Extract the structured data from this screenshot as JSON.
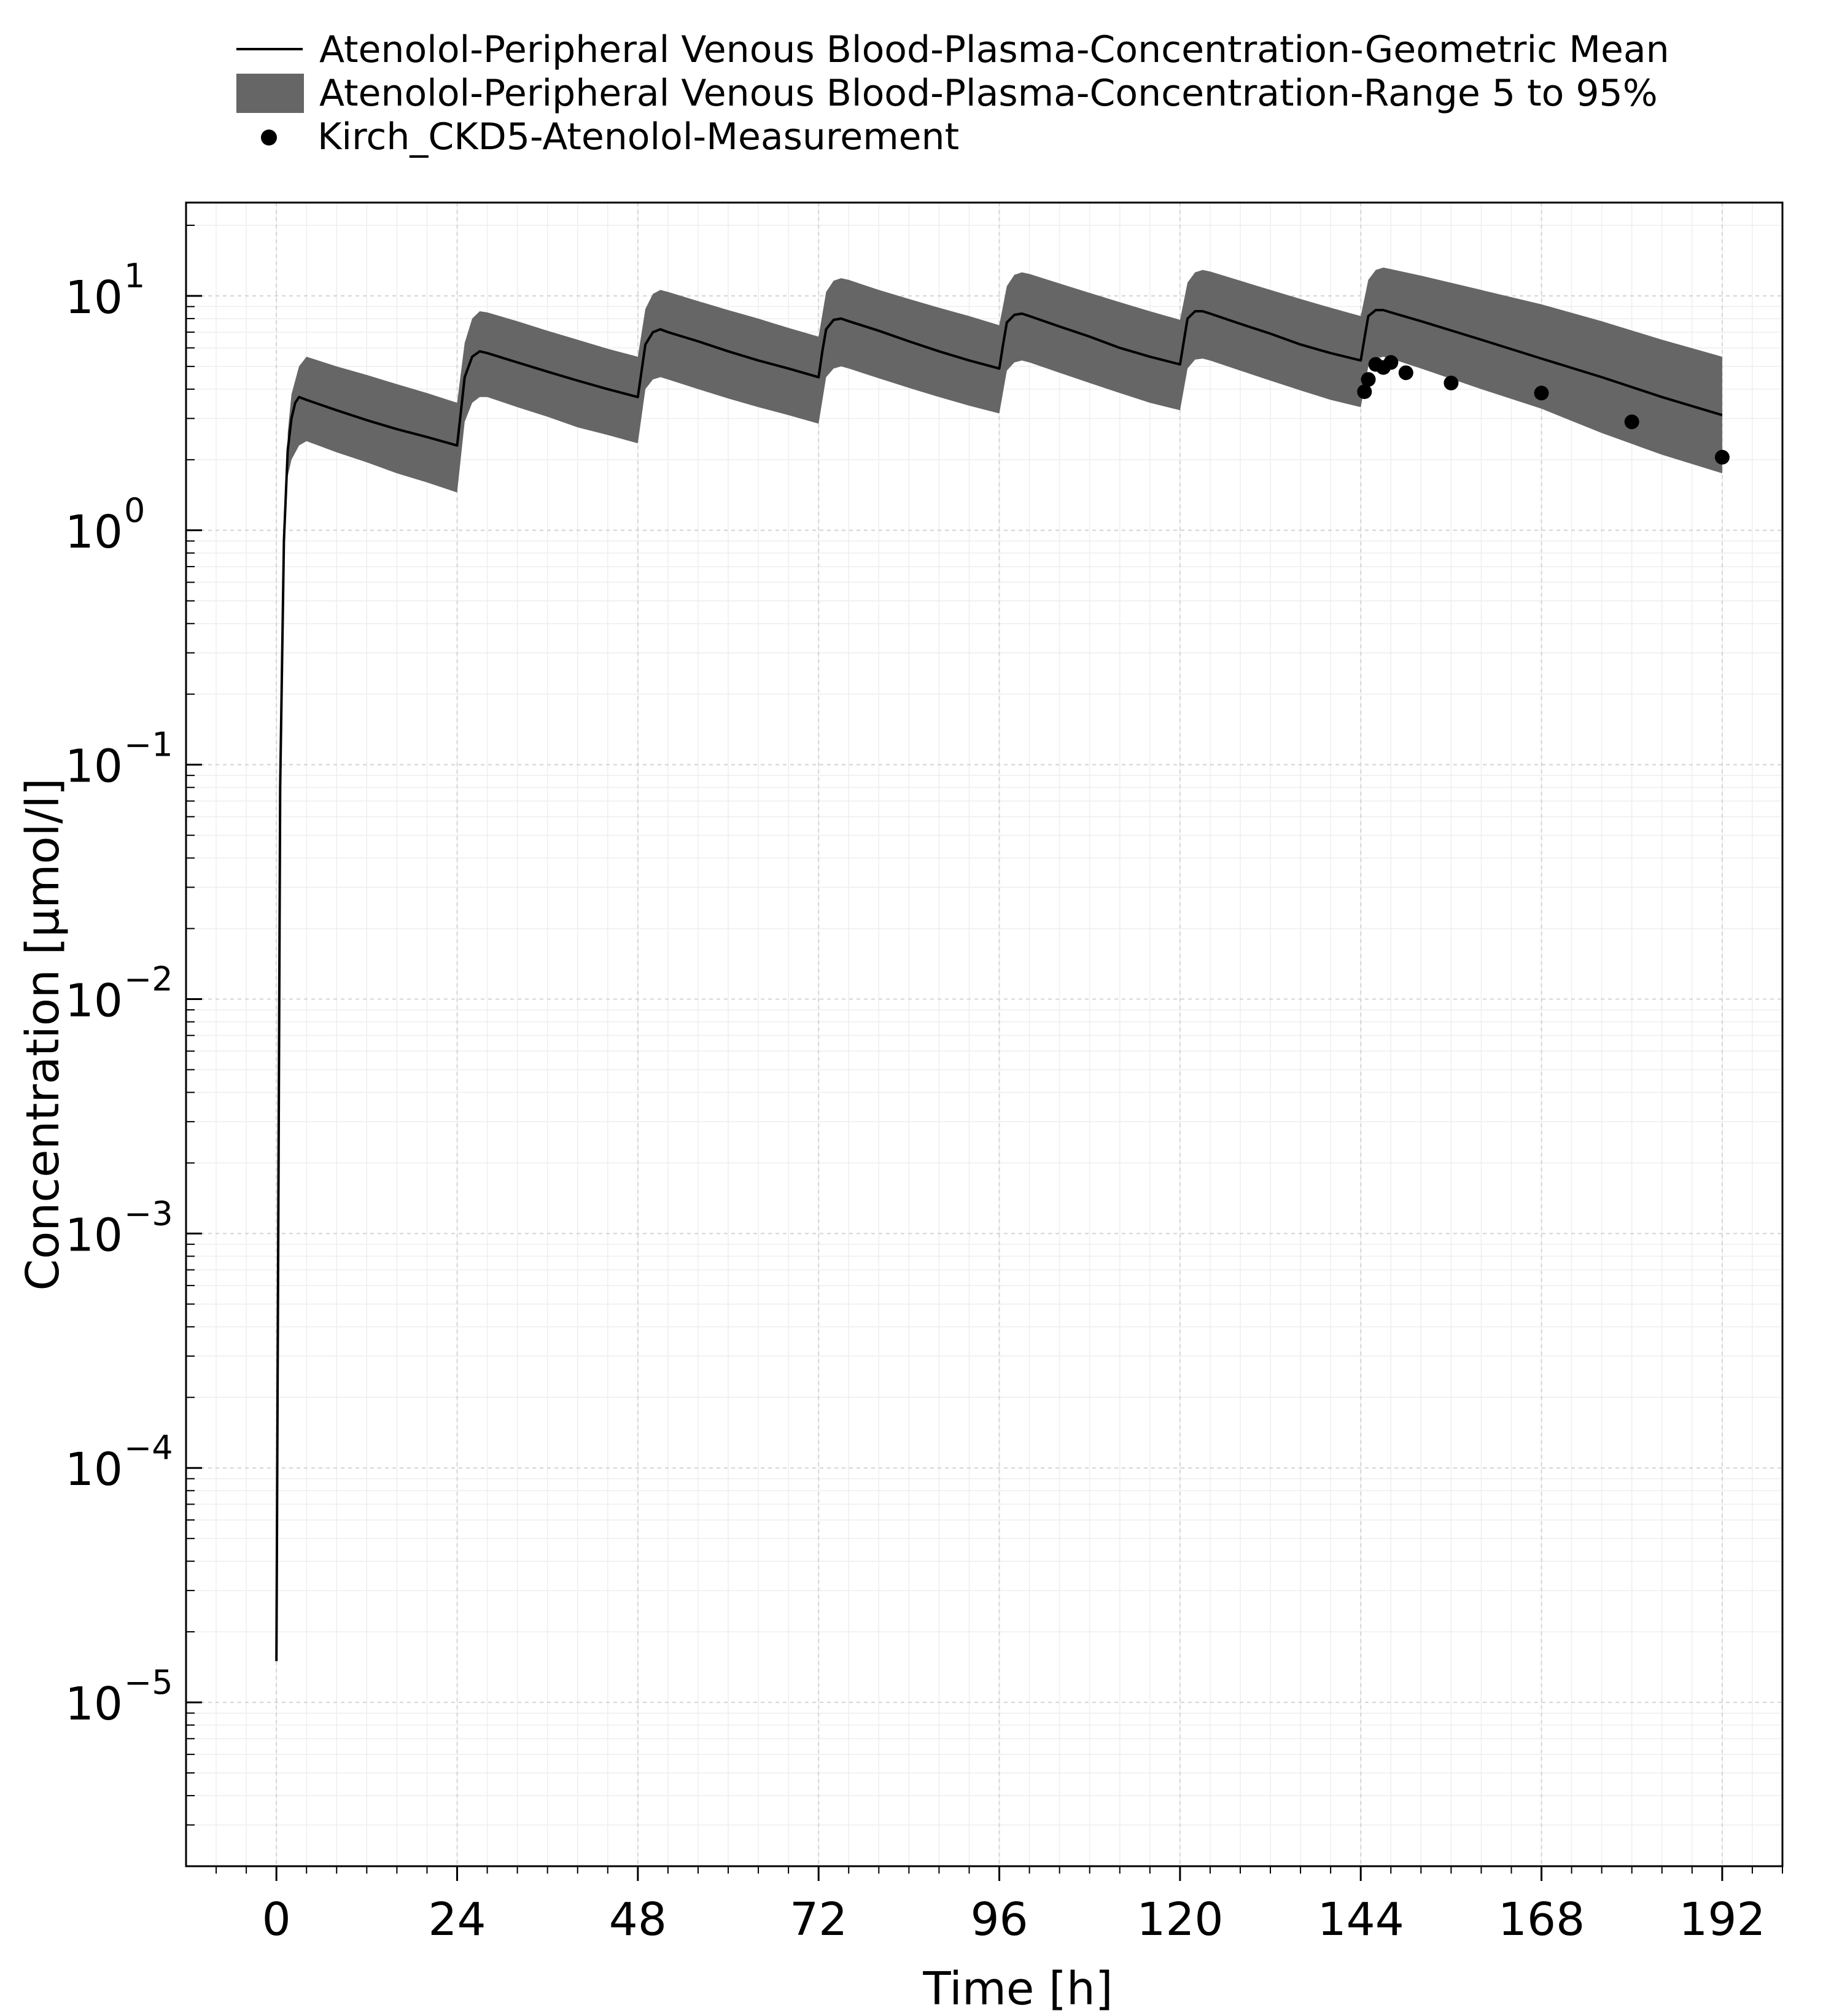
{
  "chart_data": {
    "type": "line",
    "title": "",
    "xlabel": "Time [h]",
    "ylabel": "Concentration [µmol/l]",
    "y_scale": "log",
    "xlim": [
      -12,
      200
    ],
    "ylim": [
      2e-06,
      25
    ],
    "grid": true,
    "legend_position": "top",
    "x_ticks": [
      0,
      24,
      48,
      72,
      96,
      120,
      144,
      168,
      192
    ],
    "x_tick_labels": [
      "0",
      "24",
      "48",
      "72",
      "96",
      "120",
      "144",
      "168",
      "192"
    ],
    "y_ticks": [
      {
        "value": 10,
        "base": "10",
        "exp": "1"
      },
      {
        "value": 1,
        "base": "10",
        "exp": "0"
      },
      {
        "value": 0.1,
        "base": "10",
        "exp": "−1"
      },
      {
        "value": 0.01,
        "base": "10",
        "exp": "−2"
      },
      {
        "value": 0.001,
        "base": "10",
        "exp": "−3"
      },
      {
        "value": 0.0001,
        "base": "10",
        "exp": "−4"
      },
      {
        "value": 1e-05,
        "base": "10",
        "exp": "−5"
      }
    ],
    "series": [
      {
        "name": "Atenolol-Peripheral Venous Blood-Plasma-Concentration-Geometric Mean",
        "kind": "line",
        "color": "#000000",
        "x": [
          0,
          0.5,
          1,
          1.5,
          2,
          2.5,
          3,
          4,
          8,
          12,
          16,
          20,
          24,
          24.5,
          25,
          26,
          27,
          28,
          32,
          36,
          40,
          44,
          48,
          48.5,
          49,
          50,
          51,
          52,
          56,
          60,
          64,
          68,
          72,
          72.5,
          73,
          74,
          75,
          76,
          80,
          84,
          88,
          92,
          96,
          96.5,
          97,
          98,
          99,
          100,
          104,
          108,
          112,
          116,
          120,
          120.5,
          121,
          122,
          123,
          124,
          128,
          132,
          136,
          140,
          144,
          144.5,
          145,
          146,
          147,
          148,
          152,
          160,
          168,
          176,
          184,
          192
        ],
        "values": [
          1.5e-05,
          0.08,
          0.9,
          2.2,
          3.0,
          3.5,
          3.7,
          3.6,
          3.25,
          2.95,
          2.7,
          2.5,
          2.3,
          3.2,
          4.5,
          5.5,
          5.8,
          5.7,
          5.2,
          4.75,
          4.35,
          4.0,
          3.7,
          4.8,
          6.2,
          7.0,
          7.2,
          7.0,
          6.4,
          5.8,
          5.3,
          4.9,
          4.5,
          5.8,
          7.2,
          7.9,
          8.0,
          7.8,
          7.1,
          6.4,
          5.8,
          5.3,
          4.9,
          6.2,
          7.7,
          8.3,
          8.4,
          8.2,
          7.4,
          6.7,
          6.0,
          5.5,
          5.1,
          6.4,
          8.0,
          8.6,
          8.6,
          8.4,
          7.6,
          6.9,
          6.2,
          5.7,
          5.3,
          6.6,
          8.2,
          8.7,
          8.7,
          8.5,
          7.8,
          6.5,
          5.4,
          4.5,
          3.7,
          3.1
        ]
      },
      {
        "name": "Atenolol-Peripheral Venous Blood-Plasma-Concentration-Range 5 to 95%",
        "kind": "band",
        "color": "#666666",
        "x": [
          1.5,
          2,
          3,
          4,
          8,
          12,
          16,
          20,
          24,
          25,
          26,
          27,
          28,
          32,
          36,
          40,
          44,
          48,
          49,
          50,
          51,
          52,
          56,
          60,
          64,
          68,
          72,
          73,
          74,
          75,
          76,
          80,
          84,
          88,
          92,
          96,
          97,
          98,
          99,
          100,
          104,
          108,
          112,
          116,
          120,
          121,
          122,
          123,
          124,
          128,
          132,
          136,
          140,
          144,
          145,
          146,
          147,
          148,
          152,
          160,
          168,
          176,
          184,
          192
        ],
        "lower": [
          1.7,
          2.0,
          2.3,
          2.4,
          2.15,
          1.95,
          1.75,
          1.6,
          1.45,
          2.9,
          3.5,
          3.7,
          3.7,
          3.35,
          3.05,
          2.75,
          2.55,
          2.35,
          4.0,
          4.4,
          4.5,
          4.4,
          4.0,
          3.65,
          3.35,
          3.1,
          2.85,
          4.5,
          4.9,
          5.0,
          4.9,
          4.45,
          4.05,
          3.7,
          3.4,
          3.15,
          4.8,
          5.2,
          5.3,
          5.2,
          4.7,
          4.25,
          3.85,
          3.5,
          3.25,
          4.9,
          5.35,
          5.4,
          5.3,
          4.8,
          4.35,
          3.95,
          3.6,
          3.35,
          5.0,
          5.4,
          5.5,
          5.4,
          4.9,
          4.0,
          3.3,
          2.6,
          2.1,
          1.75
        ],
        "upper": [
          2.6,
          3.8,
          5.0,
          5.5,
          5.0,
          4.6,
          4.2,
          3.85,
          3.5,
          6.3,
          8.0,
          8.6,
          8.5,
          7.8,
          7.1,
          6.5,
          5.95,
          5.5,
          8.8,
          10.2,
          10.6,
          10.4,
          9.5,
          8.7,
          8.0,
          7.3,
          6.7,
          10.4,
          11.6,
          11.9,
          11.7,
          10.6,
          9.7,
          8.9,
          8.2,
          7.5,
          11.0,
          12.3,
          12.6,
          12.4,
          11.3,
          10.3,
          9.4,
          8.6,
          7.9,
          11.4,
          12.6,
          12.9,
          12.7,
          11.6,
          10.6,
          9.7,
          8.9,
          8.2,
          11.7,
          12.9,
          13.2,
          13.0,
          12.2,
          10.6,
          9.2,
          7.8,
          6.5,
          5.5
        ]
      },
      {
        "name": "Kirch_CKD5-Atenolol-Measurement",
        "kind": "scatter",
        "color": "#000000",
        "x": [
          144.5,
          145,
          146,
          147,
          148,
          150,
          156,
          168,
          180,
          192
        ],
        "values": [
          3.9,
          4.4,
          5.1,
          4.95,
          5.2,
          4.7,
          4.25,
          3.85,
          2.9,
          2.05
        ]
      }
    ]
  }
}
